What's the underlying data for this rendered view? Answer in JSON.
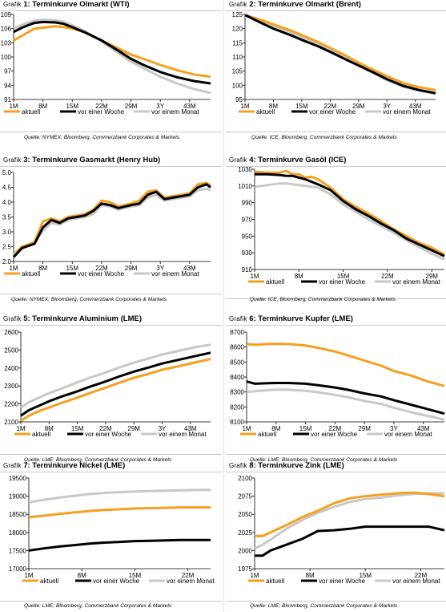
{
  "colors": {
    "aktuell": "#f5a01f",
    "week": "#000000",
    "month": "#c8c8c8"
  },
  "legend": {
    "aktuell": "aktuell",
    "week": "vor einer Woche",
    "month": "vor einem Monat"
  },
  "chart_data": [
    {
      "id": "p1",
      "type": "line",
      "title_prefix": "Grafik",
      "title_num": "1:",
      "title_main": "Terminkurve Olmarkt (WTI)",
      "source": "Quelle: NYMEX; Bloomberg, Commerzbank Corporates & Markets",
      "xticks": [
        "1M",
        "8M",
        "15M",
        "22M",
        "29M",
        "3Y",
        "43M"
      ],
      "yticks": [
        "91",
        "94",
        "97",
        "100",
        "103",
        "106",
        "109"
      ],
      "x": [
        1,
        3,
        5,
        6,
        8,
        11,
        13,
        15,
        18,
        22,
        26,
        29,
        32,
        36,
        40,
        44,
        48
      ],
      "ylim": [
        91,
        109
      ],
      "xlim": [
        1,
        48
      ],
      "series": [
        {
          "key": "aktuell",
          "values": [
            103.5,
            104.5,
            105.5,
            106,
            106.2,
            106.5,
            106.3,
            106,
            105.2,
            103.5,
            101.8,
            100.5,
            99.6,
            98.3,
            97.2,
            96.3,
            95.8
          ]
        },
        {
          "key": "week",
          "values": [
            105.3,
            106.2,
            106.9,
            107.2,
            107.4,
            107.3,
            107.0,
            106.3,
            105.2,
            103.5,
            101.3,
            99.6,
            98.3,
            96.8,
            95.7,
            94.9,
            94.4
          ]
        },
        {
          "key": "month",
          "values": [
            106.0,
            106.8,
            107.4,
            107.7,
            107.9,
            107.8,
            107.4,
            106.7,
            105.5,
            103.3,
            100.8,
            99.0,
            97.6,
            95.8,
            94.4,
            93.2,
            92.4
          ]
        }
      ]
    },
    {
      "id": "p2",
      "type": "line",
      "title_prefix": "Grafik",
      "title_num": "2:",
      "title_main": "Terminkurve Olmarkt (Brent)",
      "source": "Quelle: ICE, Bloomberg, Commerzbank Corporates & Markets",
      "xticks": [
        "1M",
        "8M",
        "15M",
        "22M",
        "29M",
        "3Y",
        "43M"
      ],
      "yticks": [
        "95",
        "100",
        "105",
        "110",
        "115",
        "120",
        "125"
      ],
      "x": [
        1,
        5,
        8,
        12,
        15,
        19,
        22,
        26,
        29,
        33,
        36,
        40,
        44,
        48
      ],
      "ylim": [
        95,
        125
      ],
      "xlim": [
        1,
        48
      ],
      "series": [
        {
          "key": "aktuell",
          "values": [
            124.8,
            123.0,
            121.5,
            119.5,
            117.7,
            115.3,
            113.2,
            110.3,
            108.0,
            105.2,
            103.2,
            100.8,
            99.3,
            98.3
          ]
        },
        {
          "key": "week",
          "values": [
            124.8,
            122.0,
            120.0,
            117.8,
            116.0,
            113.8,
            111.8,
            109.0,
            107.0,
            104.3,
            102.2,
            99.8,
            98.3,
            97.2
          ]
        },
        {
          "key": "month",
          "values": [
            124.8,
            122.8,
            121.0,
            118.8,
            116.8,
            114.5,
            112.3,
            109.3,
            107.0,
            104.0,
            101.8,
            99.5,
            98.0,
            97.0
          ]
        }
      ]
    },
    {
      "id": "p3",
      "type": "line",
      "title_prefix": "Grafik",
      "title_num": "3:",
      "title_main": "Terminkurve Gasmarkt (Henry Hub)",
      "source": "Quelle: NYMEX; Bloomberg, Commerzbank Corporates & Markets",
      "xticks": [
        "1M",
        "8M",
        "15M",
        "22M",
        "29M",
        "3Y",
        "43M"
      ],
      "yticks": [
        "2.0",
        "2.5",
        "3.0",
        "3.5",
        "4.0",
        "4.5",
        "5.0"
      ],
      "x": [
        1,
        3,
        6,
        8,
        10,
        12,
        14,
        16,
        18,
        20,
        22,
        24,
        26,
        29,
        31,
        33,
        35,
        37,
        39,
        41,
        43,
        45,
        47,
        48
      ],
      "ylim": [
        2.0,
        5.0
      ],
      "xlim": [
        1,
        48
      ],
      "series": [
        {
          "key": "aktuell",
          "values": [
            2.2,
            2.5,
            2.65,
            3.35,
            3.45,
            3.35,
            3.5,
            3.55,
            3.6,
            3.75,
            4.05,
            4.0,
            3.85,
            3.95,
            4.05,
            4.35,
            4.4,
            4.15,
            4.2,
            4.25,
            4.3,
            4.6,
            4.65,
            4.55
          ]
        },
        {
          "key": "week",
          "values": [
            2.15,
            2.45,
            2.6,
            3.15,
            3.4,
            3.3,
            3.45,
            3.5,
            3.55,
            3.7,
            3.95,
            3.9,
            3.8,
            3.9,
            3.95,
            4.25,
            4.35,
            4.1,
            4.15,
            4.2,
            4.25,
            4.5,
            4.6,
            4.5
          ]
        },
        {
          "key": "month",
          "values": [
            2.25,
            2.5,
            2.62,
            3.05,
            3.3,
            3.25,
            3.4,
            3.45,
            3.5,
            3.6,
            3.9,
            3.85,
            3.75,
            3.85,
            3.9,
            4.15,
            4.25,
            4.05,
            4.1,
            4.15,
            4.2,
            4.4,
            4.45,
            4.4
          ]
        }
      ]
    },
    {
      "id": "p4",
      "type": "line",
      "title_prefix": "Grafik",
      "title_num": "4:",
      "title_main": "Terminkurve Gasöl (ICE)",
      "source": "Quelle: ICE, Bloomberg, Commerzbank Corporates & Markets",
      "xticks": [
        "1M",
        "8M",
        "15M",
        "22M",
        "29M"
      ],
      "yticks": [
        "910",
        "930",
        "950",
        "970",
        "990",
        "1010",
        "1030"
      ],
      "x": [
        1,
        3,
        5,
        6,
        7,
        8,
        9,
        10,
        11,
        13,
        15,
        17,
        19,
        21,
        23,
        25,
        27,
        29,
        31
      ],
      "ylim": [
        910,
        1030
      ],
      "xlim": [
        1,
        31
      ],
      "series": [
        {
          "key": "aktuell",
          "values": [
            1027,
            1026,
            1026,
            1028,
            1024,
            1024,
            1020,
            1021,
            1018,
            1008,
            994,
            985,
            977,
            968,
            958,
            950,
            942,
            936,
            928
          ]
        },
        {
          "key": "week",
          "values": [
            1024,
            1024,
            1023,
            1022,
            1022,
            1020,
            1018,
            1015,
            1012,
            1005,
            992,
            982,
            974,
            965,
            957,
            947,
            940,
            933,
            926
          ]
        },
        {
          "key": "month",
          "values": [
            1009,
            1011,
            1013,
            1013,
            1012,
            1011,
            1010,
            1009,
            1008,
            1000,
            988,
            979,
            970,
            962,
            954,
            945,
            937,
            929,
            922
          ]
        }
      ]
    },
    {
      "id": "p5",
      "type": "line",
      "title_prefix": "Grafik",
      "title_num": "5:",
      "title_main": "Terminkurve Aluminium (LME)",
      "source": "Quelle: LME; Bloomberg, Commerzbank Corporates & Markets",
      "xticks": [
        "1M",
        "8M",
        "15M",
        "22M",
        "29M",
        "3Y",
        "43M"
      ],
      "yticks": [
        "2100",
        "2200",
        "2300",
        "2400",
        "2500",
        "2600"
      ],
      "x": [
        1,
        3,
        6,
        8,
        11,
        15,
        18,
        22,
        25,
        29,
        33,
        36,
        40,
        44,
        48
      ],
      "ylim": [
        2100,
        2600
      ],
      "xlim": [
        1,
        48
      ],
      "series": [
        {
          "key": "aktuell",
          "values": [
            2105,
            2135,
            2165,
            2180,
            2205,
            2235,
            2260,
            2290,
            2315,
            2345,
            2370,
            2390,
            2410,
            2430,
            2450
          ]
        },
        {
          "key": "week",
          "values": [
            2135,
            2165,
            2195,
            2215,
            2240,
            2270,
            2295,
            2325,
            2350,
            2380,
            2405,
            2425,
            2445,
            2465,
            2485
          ]
        },
        {
          "key": "month",
          "values": [
            2180,
            2210,
            2240,
            2260,
            2285,
            2320,
            2345,
            2375,
            2400,
            2430,
            2455,
            2475,
            2495,
            2515,
            2530
          ]
        }
      ]
    },
    {
      "id": "p6",
      "type": "line",
      "title_prefix": "Grafik",
      "title_num": "6:",
      "title_main": "Terminkurve Kupfer (LME)",
      "source": "Quelle: LME; Bloomberg, Commerzbank Corporates & Markets",
      "xticks": [
        "1M",
        "8M",
        "15M",
        "22M",
        "29M",
        "3Y",
        "43M"
      ],
      "yticks": [
        "8100",
        "8200",
        "8300",
        "8400",
        "8500",
        "8600",
        "8700"
      ],
      "x": [
        1,
        3,
        6,
        8,
        11,
        15,
        18,
        22,
        25,
        29,
        33,
        36,
        40,
        44,
        48
      ],
      "ylim": [
        8100,
        8700
      ],
      "xlim": [
        1,
        48
      ],
      "series": [
        {
          "key": "aktuell",
          "values": [
            8620,
            8615,
            8620,
            8622,
            8620,
            8610,
            8595,
            8570,
            8545,
            8510,
            8475,
            8440,
            8410,
            8370,
            8340
          ]
        },
        {
          "key": "week",
          "values": [
            8370,
            8355,
            8358,
            8360,
            8360,
            8355,
            8345,
            8330,
            8315,
            8290,
            8270,
            8245,
            8215,
            8185,
            8155
          ]
        },
        {
          "key": "month",
          "values": [
            8300,
            8305,
            8312,
            8315,
            8315,
            8308,
            8298,
            8280,
            8265,
            8240,
            8220,
            8195,
            8165,
            8140,
            8115
          ]
        }
      ]
    },
    {
      "id": "p7",
      "type": "line",
      "title_prefix": "Grafik",
      "title_num": "7:",
      "title_main": "Terminkurve Nickel (LME)",
      "source": "Quelle: LME; Bloomberg, Commerzbank Corporates & Markets",
      "xticks": [
        "1M",
        "8M",
        "15M",
        "22M"
      ],
      "yticks": [
        "17000",
        "17500",
        "18000",
        "18500",
        "19000",
        "19500"
      ],
      "x": [
        1,
        3,
        5,
        7,
        9,
        11,
        13,
        15,
        17,
        19,
        21,
        23,
        25
      ],
      "ylim": [
        17000,
        19500
      ],
      "xlim": [
        1,
        25
      ],
      "series": [
        {
          "key": "aktuell",
          "values": [
            18420,
            18460,
            18510,
            18550,
            18590,
            18620,
            18640,
            18660,
            18670,
            18680,
            18690,
            18690,
            18690
          ]
        },
        {
          "key": "week",
          "values": [
            17500,
            17560,
            17610,
            17650,
            17690,
            17720,
            17740,
            17760,
            17770,
            17780,
            17790,
            17790,
            17790
          ]
        },
        {
          "key": "month",
          "values": [
            18830,
            18900,
            18960,
            19010,
            19060,
            19090,
            19110,
            19130,
            19140,
            19150,
            19160,
            19170,
            19170
          ]
        }
      ]
    },
    {
      "id": "p8",
      "type": "line",
      "title_prefix": "Grafik",
      "title_num": "8:",
      "title_main": "Terminkurve Zink (LME)",
      "source": "Quelle: LME; Bloomberg, Commerzbank Corporates & Markets",
      "xticks": [
        "1M",
        "8M",
        "15M",
        "22M"
      ],
      "yticks": [
        "1975",
        "2000",
        "2025",
        "2050",
        "2075",
        "2100"
      ],
      "x": [
        1,
        2,
        3,
        5,
        7,
        9,
        11,
        13,
        15,
        17,
        19,
        21,
        23,
        25
      ],
      "ylim": [
        1975,
        2100
      ],
      "xlim": [
        1,
        25
      ],
      "series": [
        {
          "key": "aktuell",
          "values": [
            2020,
            2020,
            2025,
            2035,
            2046,
            2055,
            2065,
            2072,
            2075,
            2077,
            2079,
            2080,
            2078,
            2075
          ]
        },
        {
          "key": "week",
          "values": [
            1993,
            1993,
            2000,
            2008,
            2016,
            2027,
            2028,
            2030,
            2033,
            2033,
            2033,
            2033,
            2033,
            2028
          ]
        },
        {
          "key": "month",
          "values": [
            2003,
            2008,
            2015,
            2030,
            2042,
            2052,
            2060,
            2067,
            2071,
            2073,
            2076,
            2078,
            2079,
            2079
          ]
        }
      ]
    }
  ]
}
